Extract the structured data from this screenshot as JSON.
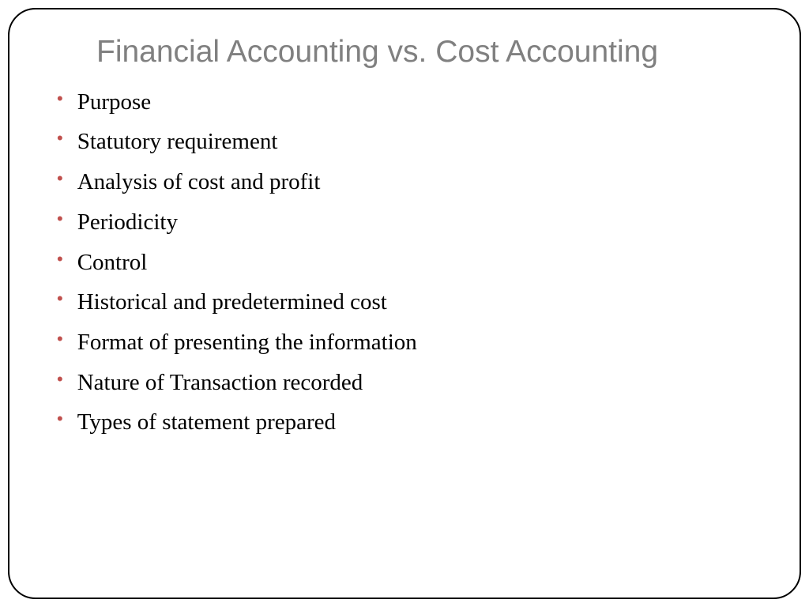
{
  "slide": {
    "title": "Financial Accounting vs. Cost Accounting",
    "title_color": "#808080",
    "title_fontsize": 39,
    "title_font": "Verdana, Geneva, sans-serif",
    "bullet_color": "#c0504d",
    "body_color": "#000000",
    "body_fontsize": 29,
    "body_font": "Garamond, Georgia, serif",
    "border_color": "#000000",
    "border_radius": 35,
    "background_color": "#ffffff",
    "items": [
      "Purpose",
      "Statutory requirement",
      " Analysis of cost and profit",
      "Periodicity",
      "Control",
      "Historical and predetermined cost",
      "Format of presenting the information",
      "Nature of Transaction recorded",
      "Types of statement prepared"
    ]
  }
}
